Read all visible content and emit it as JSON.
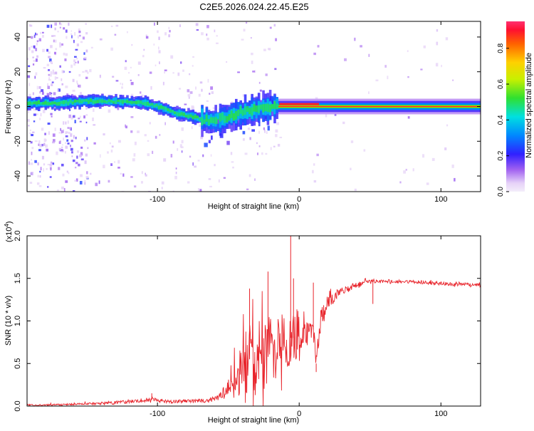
{
  "title": "C2E5.2026.024.22.45.E25",
  "colors": {
    "snr_line": "#e8232a",
    "background": "#ffffff",
    "axis": "#000000"
  },
  "chart_data": [
    {
      "type": "heatmap",
      "name": "spectrogram",
      "xlabel": "Height of straight line (km)",
      "ylabel": "Frequency (Hz)",
      "xlim": [
        -192,
        128
      ],
      "ylim": [
        -49,
        49
      ],
      "xticks": [
        {
          "v": -100,
          "label": "-100"
        },
        {
          "v": 0,
          "label": "0"
        },
        {
          "v": 100,
          "label": "100"
        }
      ],
      "yticks": [
        {
          "v": -40,
          "label": "-40"
        },
        {
          "v": -20,
          "label": "-20"
        },
        {
          "v": 0,
          "label": "0"
        },
        {
          "v": 20,
          "label": "20"
        },
        {
          "v": 40,
          "label": "40"
        }
      ],
      "ridge": {
        "x": [
          -192,
          -170,
          -150,
          -130,
          -110,
          -100,
          -90,
          -80,
          -70,
          -60,
          -50,
          -40,
          -30,
          -20,
          -10,
          -5,
          0,
          3,
          8,
          15,
          30,
          128
        ],
        "freq": [
          2,
          2,
          3,
          3,
          2,
          0,
          -3,
          -5,
          -7,
          -8,
          -6,
          -3,
          -2,
          0,
          1,
          1,
          3,
          2,
          1,
          0,
          0,
          0
        ]
      },
      "noise_low_x": -150,
      "broad_band_x": [
        -70,
        -15
      ],
      "stable_from_x": -15,
      "colorbar": {
        "label": "Normalized spectral amplitude",
        "range": [
          0,
          0.95
        ],
        "ticks": [
          {
            "v": 0.0,
            "label": "0.0"
          },
          {
            "v": 0.2,
            "label": "0.2"
          },
          {
            "v": 0.4,
            "label": "0.4"
          },
          {
            "v": 0.6,
            "label": "0.6"
          },
          {
            "v": 0.8,
            "label": "0.8"
          }
        ]
      }
    },
    {
      "type": "line",
      "name": "snr",
      "xlabel": "Height of straight line (km)",
      "ylabel": "SNR (10 * v/v)",
      "scale_label": "(x10",
      "scale_exp": "4",
      "scale_close": ")",
      "xlim": [
        -192,
        128
      ],
      "ylim": [
        0,
        2.0
      ],
      "xticks": [
        {
          "v": -100,
          "label": "-100"
        },
        {
          "v": 0,
          "label": "0"
        },
        {
          "v": 100,
          "label": "100"
        }
      ],
      "yticks": [
        {
          "v": 0.0,
          "label": "0.0"
        },
        {
          "v": 0.5,
          "label": "0.5"
        },
        {
          "v": 1.0,
          "label": "1.0"
        },
        {
          "v": 1.5,
          "label": "1.5"
        },
        {
          "v": 2.0,
          "label": "2.0"
        }
      ],
      "series": [
        {
          "name": "SNR",
          "x": [
            -192,
            -160,
            -130,
            -110,
            -103,
            -100,
            -90,
            -80,
            -70,
            -60,
            -55,
            -50,
            -45,
            -40,
            -35,
            -30,
            -25,
            -20,
            -15,
            -10,
            -7,
            -5,
            -2,
            0,
            5,
            10,
            12,
            15,
            20,
            25,
            30,
            40,
            50,
            60,
            80,
            100,
            128
          ],
          "base": [
            0.01,
            0.02,
            0.04,
            0.06,
            0.09,
            0.06,
            0.05,
            0.06,
            0.06,
            0.08,
            0.12,
            0.2,
            0.35,
            0.5,
            0.55,
            0.6,
            0.6,
            0.65,
            0.7,
            0.75,
            0.8,
            0.8,
            0.8,
            0.8,
            0.8,
            0.9,
            0.5,
            1.0,
            1.2,
            1.3,
            1.35,
            1.42,
            1.46,
            1.47,
            1.46,
            1.44,
            1.42
          ],
          "amp": [
            0.01,
            0.01,
            0.02,
            0.02,
            0.03,
            0.02,
            0.02,
            0.02,
            0.02,
            0.03,
            0.06,
            0.12,
            0.25,
            0.35,
            0.4,
            0.45,
            0.45,
            0.4,
            0.35,
            0.35,
            0.35,
            0.3,
            0.25,
            0.2,
            0.2,
            0.15,
            0.1,
            0.12,
            0.1,
            0.07,
            0.05,
            0.03,
            0.03,
            0.02,
            0.02,
            0.02,
            0.02
          ]
        }
      ],
      "spikes": [
        {
          "x": -104,
          "y": 0.15
        },
        {
          "x": -35,
          "y": 1.38
        },
        {
          "x": -22,
          "y": 1.58
        },
        {
          "x": -6,
          "y": 2.0
        },
        {
          "x": -4,
          "y": 1.5
        },
        {
          "x": 10,
          "y": 1.45
        },
        {
          "x": 12,
          "y": 0.4
        },
        {
          "x": 52,
          "y": 1.2
        }
      ]
    }
  ]
}
